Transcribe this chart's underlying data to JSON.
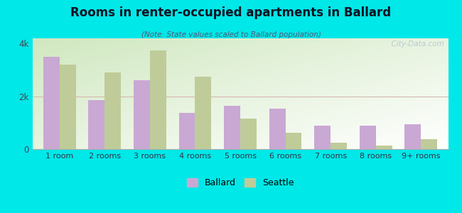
{
  "title": "Rooms in renter-occupied apartments in Ballard",
  "subtitle": "(Note: State values scaled to Ballard population)",
  "categories": [
    "1 room",
    "2 rooms",
    "3 rooms",
    "4 rooms",
    "5 rooms",
    "6 rooms",
    "7 rooms",
    "8 rooms",
    "9+ rooms"
  ],
  "ballard_values": [
    3500,
    1850,
    2600,
    1380,
    1650,
    1530,
    880,
    880,
    940
  ],
  "seattle_values": [
    3200,
    2900,
    3750,
    2750,
    1150,
    620,
    230,
    130,
    380
  ],
  "ballard_color": "#c9a8d4",
  "seattle_color": "#bfcc99",
  "background_outer": "#00e8e8",
  "ylim": [
    0,
    4200
  ],
  "ytick_vals": [
    0,
    2000,
    4000
  ],
  "ytick_labels": [
    "0",
    "2k",
    "4k"
  ],
  "bar_width": 0.36,
  "legend_ballard": "Ballard",
  "legend_seattle": "Seattle",
  "watermark": "  City-Data.com",
  "title_color": "#1a1a2e",
  "subtitle_color": "#555577"
}
